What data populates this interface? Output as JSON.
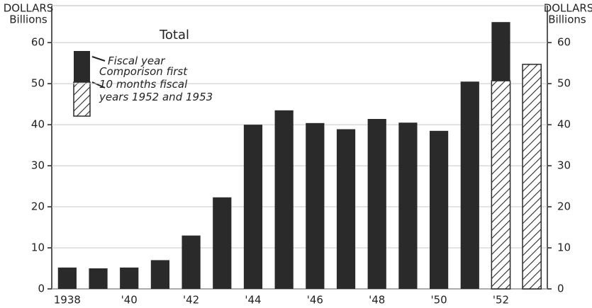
{
  "chart_data": {
    "type": "bar",
    "title": "Total",
    "y_label": [
      "DOLLARS",
      "Billions"
    ],
    "y2_label": [
      "DOLLARS",
      "Billions"
    ],
    "categories": [
      "1938",
      null,
      "'40",
      null,
      "'42",
      null,
      "'44",
      null,
      "'46",
      null,
      "'48",
      null,
      "'50",
      null,
      "'52",
      null
    ],
    "series": [
      {
        "name": "Fiscal year",
        "color": "#2a2a2a",
        "pattern": "solid",
        "values": [
          5.2,
          5.0,
          5.2,
          7.0,
          13.0,
          22.3,
          40.0,
          43.5,
          40.4,
          38.9,
          41.4,
          40.5,
          38.5,
          50.5,
          65.0,
          null
        ]
      },
      {
        "name": "Comporison first\n10 months fiscal\nyears 1952 and 1953",
        "color": "#2a2a2a",
        "pattern": "hatch",
        "values": [
          null,
          null,
          null,
          null,
          null,
          null,
          null,
          null,
          null,
          null,
          null,
          null,
          null,
          null,
          50.7,
          54.7
        ]
      }
    ],
    "ylim": [
      0,
      69
    ],
    "yticks": [
      0,
      10,
      20,
      30,
      40,
      50,
      60
    ],
    "y2lim": [
      0,
      69
    ],
    "y2ticks": [
      0,
      10,
      20,
      30,
      40,
      50,
      60
    ],
    "grid": true
  }
}
